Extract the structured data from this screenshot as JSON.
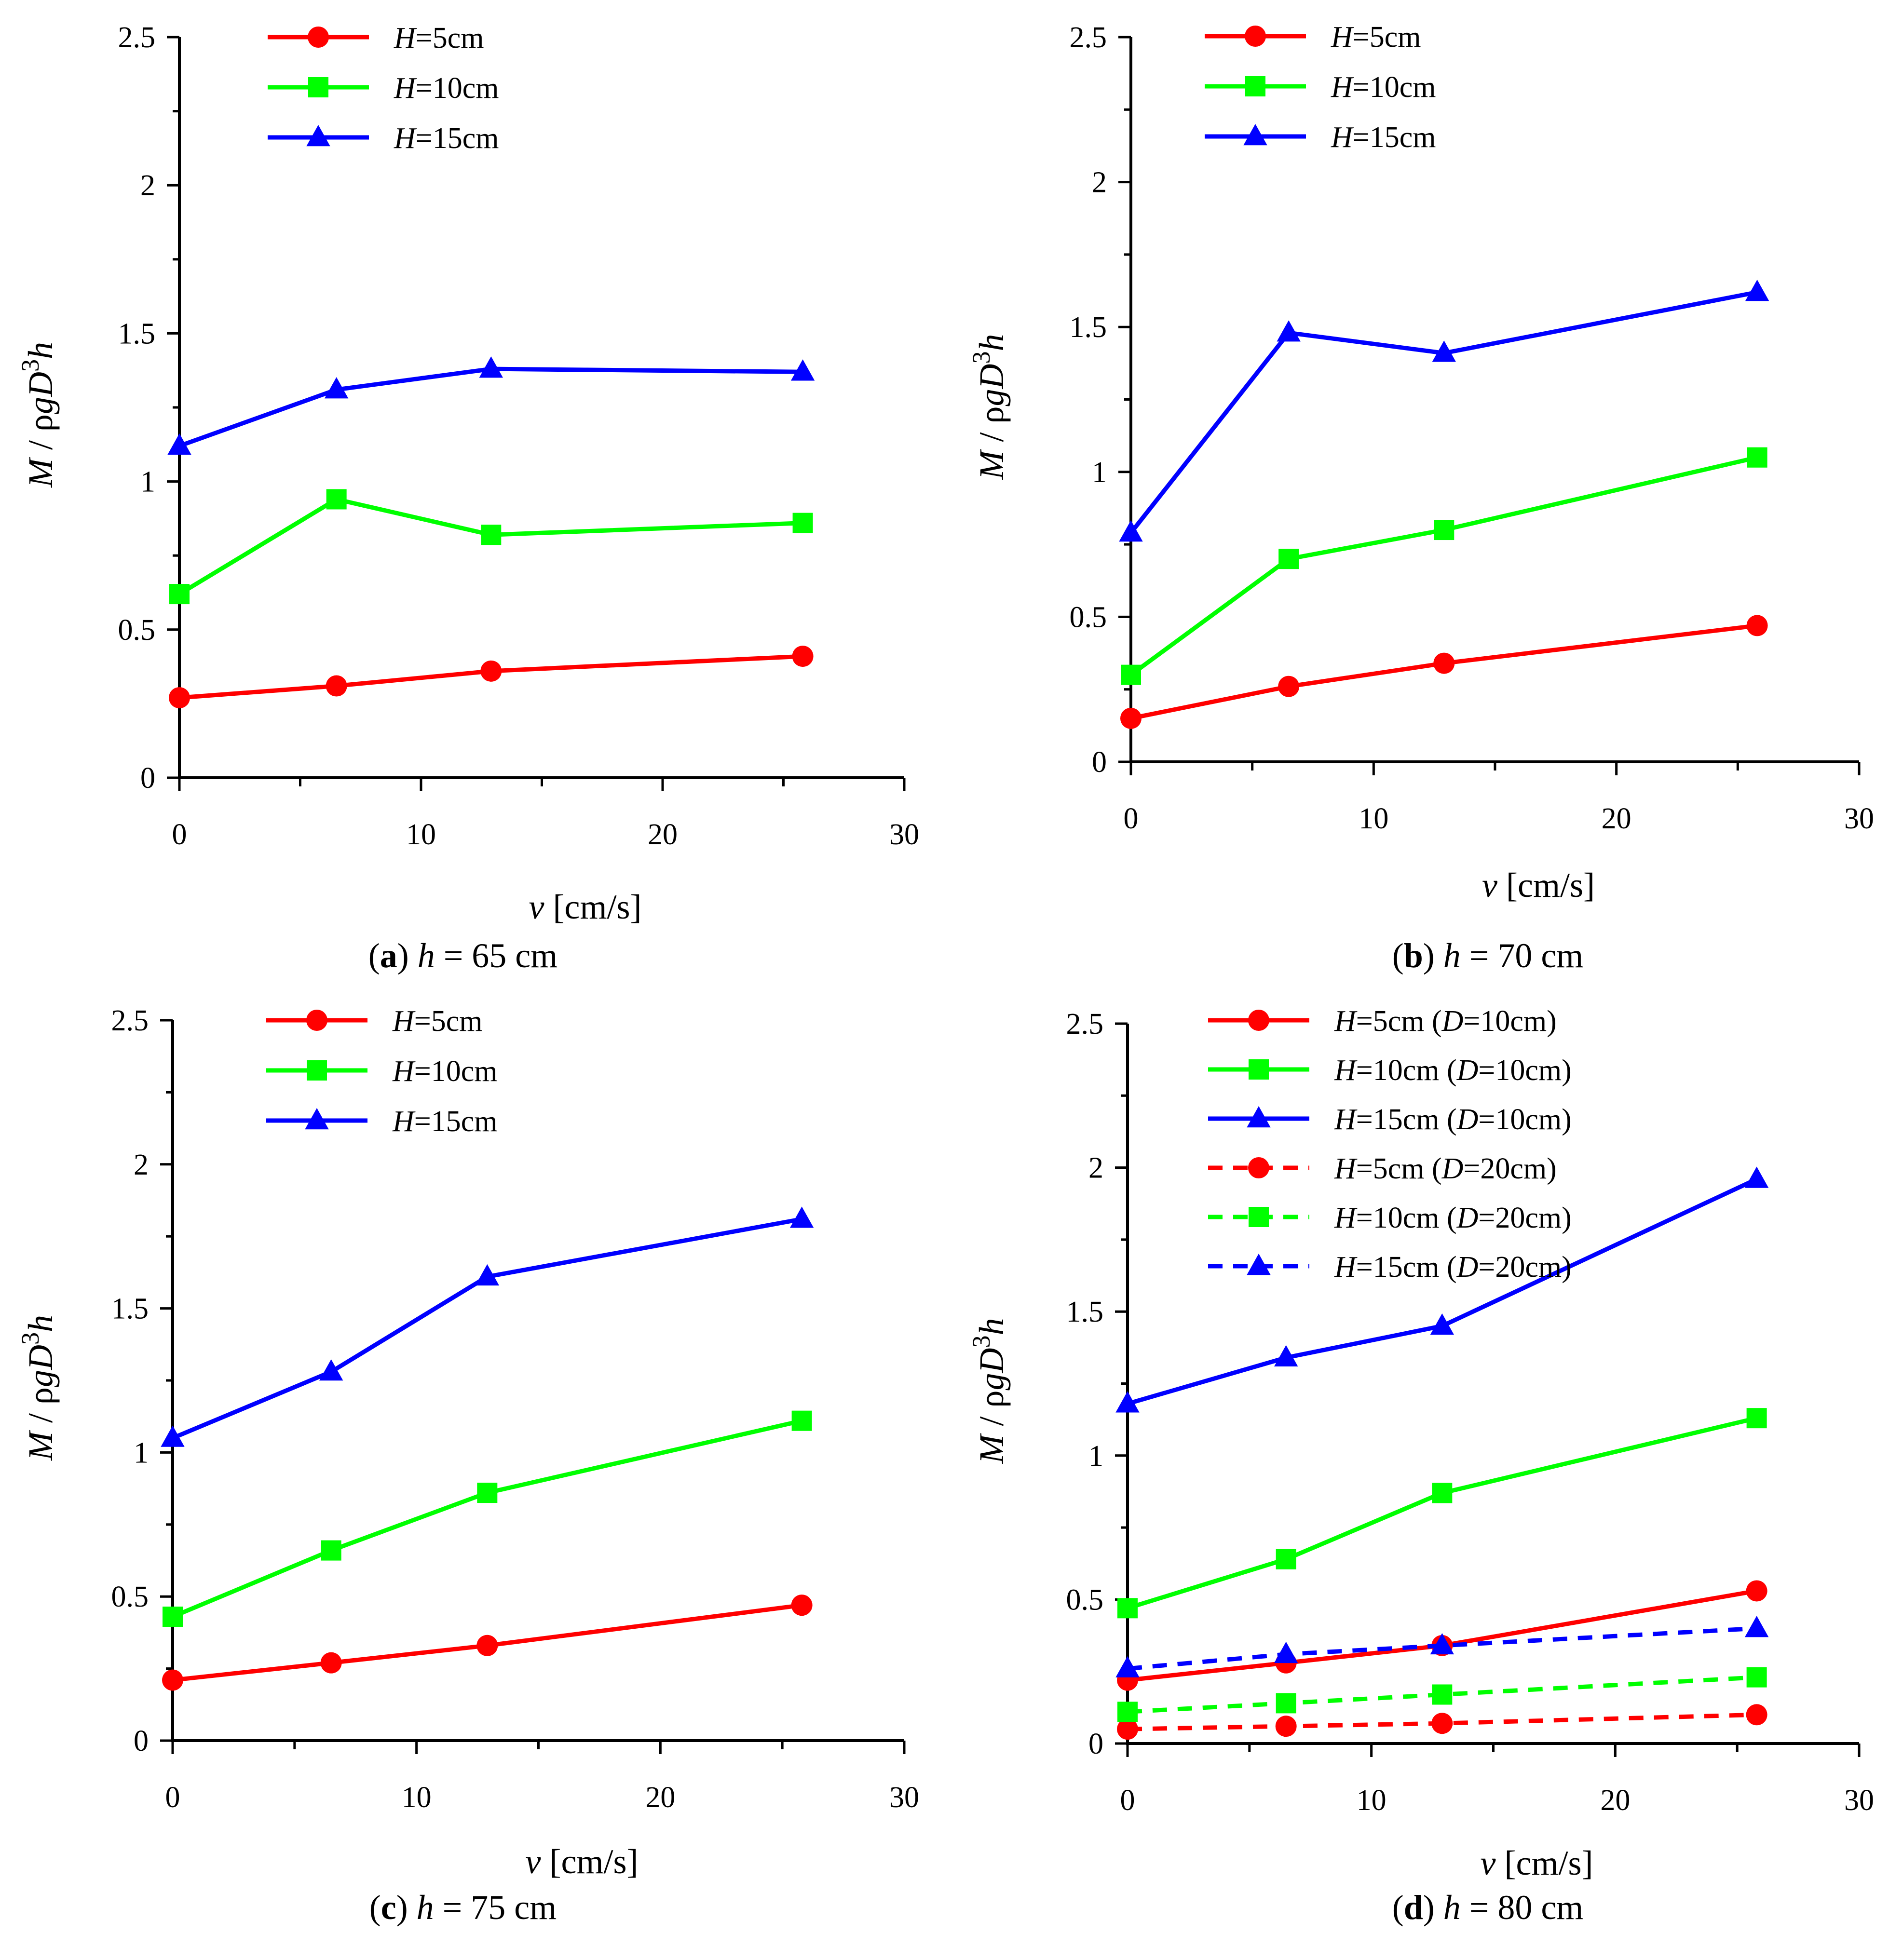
{
  "chart_data": [
    {
      "type": "line",
      "panel": "a",
      "caption": {
        "letter": "a",
        "var": "h",
        "rest": " = 65 cm"
      },
      "xlabel": {
        "var": "v",
        "rest": " [cm/s]"
      },
      "ylabel": {
        "M": "M",
        "mid": " / ρ",
        "g": "g",
        "D": "D",
        "exp": "3",
        "h": "h"
      },
      "xlim": [
        0,
        30
      ],
      "ylim": [
        0,
        2.5
      ],
      "xticks": [
        "0",
        "10",
        "20",
        "30"
      ],
      "yticks": [
        "0",
        "0.5",
        "1",
        "1.5",
        "2",
        "2.5"
      ],
      "x": [
        0,
        6.5,
        12.9,
        25.8
      ],
      "series": [
        {
          "name": "H=5cm",
          "h_var": "H",
          "h_val": "=5cm",
          "d_var": "",
          "d_val": "",
          "color": "#ff0000",
          "marker": "circle",
          "dashed": false,
          "values": [
            0.27,
            0.31,
            0.36,
            0.41
          ]
        },
        {
          "name": "H=10cm",
          "h_var": "H",
          "h_val": "=10cm",
          "d_var": "",
          "d_val": "",
          "color": "#00ff00",
          "marker": "square",
          "dashed": false,
          "values": [
            0.62,
            0.94,
            0.82,
            0.86
          ]
        },
        {
          "name": "H=15cm",
          "h_var": "H",
          "h_val": "=15cm",
          "d_var": "",
          "d_val": "",
          "color": "#0000ff",
          "marker": "triangle",
          "dashed": false,
          "values": [
            1.12,
            1.31,
            1.38,
            1.37
          ]
        }
      ]
    },
    {
      "type": "line",
      "panel": "b",
      "caption": {
        "letter": "b",
        "var": "h",
        "rest": " = 70 cm"
      },
      "xlabel": {
        "var": "v",
        "rest": " [cm/s]"
      },
      "ylabel": {
        "M": "M",
        "mid": " / ρ",
        "g": "g",
        "D": "D",
        "exp": "3",
        "h": "h"
      },
      "xlim": [
        0,
        30
      ],
      "ylim": [
        0,
        2.5
      ],
      "xticks": [
        "0",
        "10",
        "20",
        "30"
      ],
      "yticks": [
        "0",
        "0.5",
        "1",
        "1.5",
        "2",
        "2.5"
      ],
      "x": [
        0,
        6.5,
        12.9,
        25.8
      ],
      "series": [
        {
          "name": "H=5cm",
          "h_var": "H",
          "h_val": "=5cm",
          "d_var": "",
          "d_val": "",
          "color": "#ff0000",
          "marker": "circle",
          "dashed": false,
          "values": [
            0.15,
            0.26,
            0.34,
            0.47
          ]
        },
        {
          "name": "H=10cm",
          "h_var": "H",
          "h_val": "=10cm",
          "d_var": "",
          "d_val": "",
          "color": "#00ff00",
          "marker": "square",
          "dashed": false,
          "values": [
            0.3,
            0.7,
            0.8,
            1.05
          ]
        },
        {
          "name": "H=15cm",
          "h_var": "H",
          "h_val": "=15cm",
          "d_var": "",
          "d_val": "",
          "color": "#0000ff",
          "marker": "triangle",
          "dashed": false,
          "values": [
            0.79,
            1.48,
            1.41,
            1.62
          ]
        }
      ]
    },
    {
      "type": "line",
      "panel": "c",
      "caption": {
        "letter": "c",
        "var": "h",
        "rest": " = 75 cm"
      },
      "xlabel": {
        "var": "v",
        "rest": " [cm/s]"
      },
      "ylabel": {
        "M": "M",
        "mid": " / ρ",
        "g": "g",
        "D": "D",
        "exp": "3",
        "h": "h"
      },
      "xlim": [
        0,
        30
      ],
      "ylim": [
        0,
        2.5
      ],
      "xticks": [
        "0",
        "10",
        "20",
        "30"
      ],
      "yticks": [
        "0",
        "0.5",
        "1",
        "1.5",
        "2",
        "2.5"
      ],
      "x": [
        0,
        6.5,
        12.9,
        25.8
      ],
      "series": [
        {
          "name": "H=5cm",
          "h_var": "H",
          "h_val": "=5cm",
          "d_var": "",
          "d_val": "",
          "color": "#ff0000",
          "marker": "circle",
          "dashed": false,
          "values": [
            0.21,
            0.27,
            0.33,
            0.47
          ]
        },
        {
          "name": "H=10cm",
          "h_var": "H",
          "h_val": "=10cm",
          "d_var": "",
          "d_val": "",
          "color": "#00ff00",
          "marker": "square",
          "dashed": false,
          "values": [
            0.43,
            0.66,
            0.86,
            1.11
          ]
        },
        {
          "name": "H=15cm",
          "h_var": "H",
          "h_val": "=15cm",
          "d_var": "",
          "d_val": "",
          "color": "#0000ff",
          "marker": "triangle",
          "dashed": false,
          "values": [
            1.05,
            1.28,
            1.61,
            1.81
          ]
        }
      ]
    },
    {
      "type": "line",
      "panel": "d",
      "caption": {
        "letter": "d",
        "var": "h",
        "rest": " = 80 cm"
      },
      "xlabel": {
        "var": "v",
        "rest": " [cm/s]"
      },
      "ylabel": {
        "M": "M",
        "mid": " / ρ",
        "g": "g",
        "D": "D",
        "exp": "3",
        "h": "h"
      },
      "xlim": [
        0,
        30
      ],
      "ylim": [
        0,
        2.5
      ],
      "xticks": [
        "0",
        "10",
        "20",
        "30"
      ],
      "yticks": [
        "0",
        "0.5",
        "1",
        "1.5",
        "2",
        "2.5"
      ],
      "x": [
        0,
        6.5,
        12.9,
        25.8
      ],
      "series": [
        {
          "name": "H=5cm (D=10cm)",
          "h_var": "H",
          "h_val": "=5cm (",
          "d_var": "D",
          "d_val": "=10cm)",
          "color": "#ff0000",
          "marker": "circle",
          "dashed": false,
          "values": [
            0.22,
            0.28,
            0.34,
            0.53
          ]
        },
        {
          "name": "H=10cm (D=10cm)",
          "h_var": "H",
          "h_val": "=10cm (",
          "d_var": "D",
          "d_val": "=10cm)",
          "color": "#00ff00",
          "marker": "square",
          "dashed": false,
          "values": [
            0.47,
            0.64,
            0.87,
            1.13
          ]
        },
        {
          "name": "H=15cm (D=10cm)",
          "h_var": "H",
          "h_val": "=15cm (",
          "d_var": "D",
          "d_val": "=10cm)",
          "color": "#0000ff",
          "marker": "triangle",
          "dashed": false,
          "values": [
            1.18,
            1.34,
            1.45,
            1.96
          ]
        },
        {
          "name": "H=5cm (D=20cm)",
          "h_var": "H",
          "h_val": "=5cm (",
          "d_var": "D",
          "d_val": "=20cm)",
          "color": "#ff0000",
          "marker": "circle",
          "dashed": true,
          "values": [
            0.05,
            0.06,
            0.07,
            0.1
          ]
        },
        {
          "name": "H=10cm (D=20cm)",
          "h_var": "H",
          "h_val": "=10cm (",
          "d_var": "D",
          "d_val": "=20cm)",
          "color": "#00ff00",
          "marker": "square",
          "dashed": true,
          "values": [
            0.11,
            0.14,
            0.17,
            0.23
          ]
        },
        {
          "name": "H=15cm (D=20cm)",
          "h_var": "H",
          "h_val": "=15cm (",
          "d_var": "D",
          "d_val": "=20cm)",
          "color": "#0000ff",
          "marker": "triangle",
          "dashed": true,
          "values": [
            0.26,
            0.31,
            0.34,
            0.4
          ]
        }
      ]
    }
  ]
}
